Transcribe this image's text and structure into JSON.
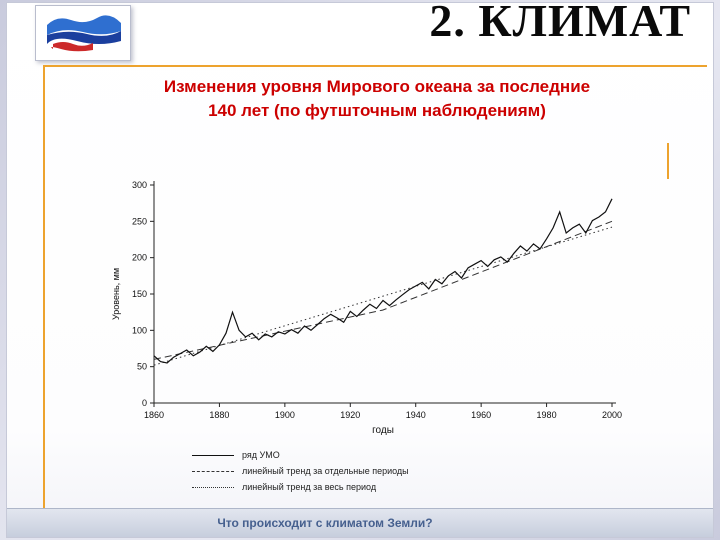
{
  "header": {
    "title": "2. КЛИМАТ"
  },
  "icons": {
    "logo": "russia-flag"
  },
  "main_title": {
    "line1": "Изменения уровня Мирового океана за последние",
    "line2": "140 лет (по футшточным наблюдениям)"
  },
  "footer": {
    "text": "Что происходит с климатом Земли?"
  },
  "chart_data": {
    "type": "line",
    "title": "",
    "xlabel": "годы",
    "ylabel": "Уровень, мм",
    "xlim": [
      1860,
      2000
    ],
    "ylim": [
      0,
      300
    ],
    "x_ticks": [
      1860,
      1880,
      1900,
      1920,
      1940,
      1960,
      1980,
      2000
    ],
    "y_ticks": [
      0,
      50,
      100,
      150,
      200,
      250,
      300
    ],
    "grid": false,
    "legend_position": "bottom-left",
    "series": [
      {
        "name": "ряд УМО",
        "style": "solid",
        "points": [
          [
            1860,
            65
          ],
          [
            1862,
            57
          ],
          [
            1864,
            55
          ],
          [
            1866,
            63
          ],
          [
            1868,
            68
          ],
          [
            1870,
            73
          ],
          [
            1872,
            65
          ],
          [
            1874,
            70
          ],
          [
            1876,
            78
          ],
          [
            1878,
            71
          ],
          [
            1880,
            80
          ],
          [
            1882,
            96
          ],
          [
            1884,
            125
          ],
          [
            1886,
            100
          ],
          [
            1888,
            91
          ],
          [
            1890,
            96
          ],
          [
            1892,
            87
          ],
          [
            1894,
            95
          ],
          [
            1896,
            91
          ],
          [
            1898,
            98
          ],
          [
            1900,
            95
          ],
          [
            1902,
            101
          ],
          [
            1904,
            96
          ],
          [
            1906,
            106
          ],
          [
            1908,
            100
          ],
          [
            1910,
            108
          ],
          [
            1912,
            116
          ],
          [
            1914,
            122
          ],
          [
            1916,
            117
          ],
          [
            1918,
            111
          ],
          [
            1920,
            126
          ],
          [
            1922,
            119
          ],
          [
            1924,
            128
          ],
          [
            1926,
            136
          ],
          [
            1928,
            130
          ],
          [
            1930,
            141
          ],
          [
            1932,
            134
          ],
          [
            1934,
            142
          ],
          [
            1936,
            149
          ],
          [
            1938,
            156
          ],
          [
            1940,
            161
          ],
          [
            1942,
            166
          ],
          [
            1944,
            157
          ],
          [
            1946,
            170
          ],
          [
            1948,
            164
          ],
          [
            1950,
            175
          ],
          [
            1952,
            181
          ],
          [
            1954,
            172
          ],
          [
            1956,
            186
          ],
          [
            1958,
            191
          ],
          [
            1960,
            196
          ],
          [
            1962,
            188
          ],
          [
            1964,
            197
          ],
          [
            1966,
            201
          ],
          [
            1968,
            194
          ],
          [
            1970,
            206
          ],
          [
            1972,
            216
          ],
          [
            1974,
            209
          ],
          [
            1976,
            219
          ],
          [
            1978,
            212
          ],
          [
            1980,
            226
          ],
          [
            1982,
            241
          ],
          [
            1984,
            263
          ],
          [
            1986,
            234
          ],
          [
            1988,
            241
          ],
          [
            1990,
            246
          ],
          [
            1992,
            234
          ],
          [
            1994,
            251
          ],
          [
            1996,
            256
          ],
          [
            1998,
            263
          ],
          [
            2000,
            281
          ]
        ]
      },
      {
        "name": "линейный тренд за отдельные периоды",
        "style": "dashed",
        "points": [
          [
            1860,
            60
          ],
          [
            1930,
            128
          ],
          [
            2000,
            250
          ]
        ]
      },
      {
        "name": "линейный тренд за весь период",
        "style": "dotted",
        "points": [
          [
            1860,
            52
          ],
          [
            2000,
            242
          ]
        ]
      }
    ]
  }
}
